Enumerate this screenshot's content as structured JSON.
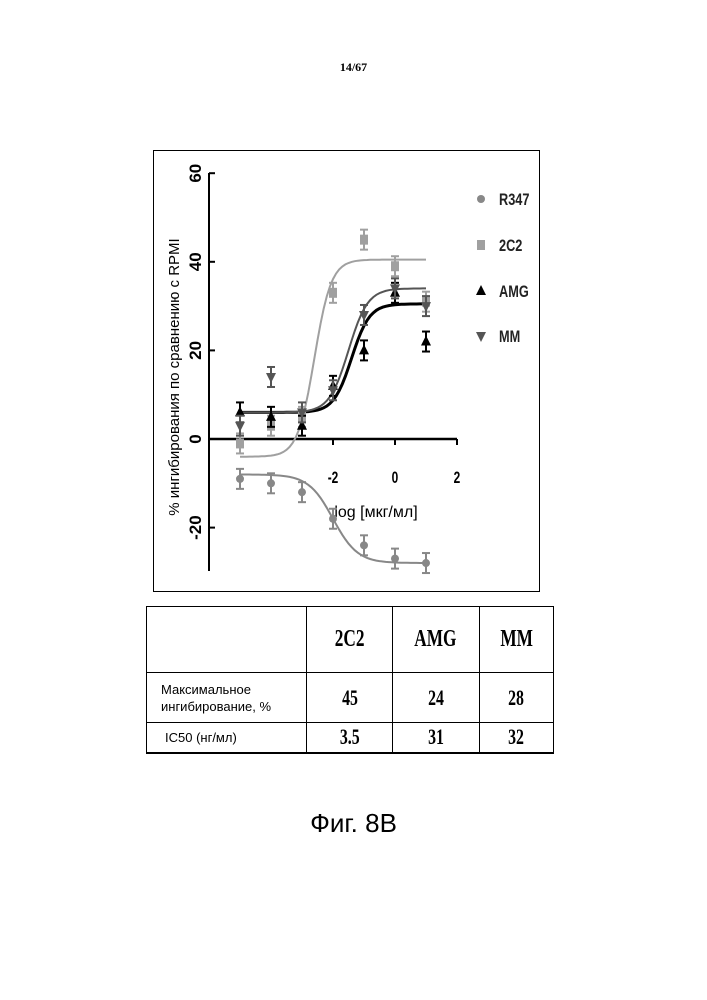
{
  "header": {
    "page_number": "14/67"
  },
  "chart_data": {
    "type": "scatter",
    "xlabel": "log [мкг/мл]",
    "ylabel": "% ингибирования по сравнению с RPMI",
    "xlim": [
      -5.5,
      2
    ],
    "ylim": [
      -30,
      60
    ],
    "xticks": [
      "-2",
      "0",
      "2"
    ],
    "yticks": [
      "60",
      "40",
      "20",
      "0",
      "-20"
    ],
    "legend_position": "right",
    "series": [
      {
        "name": "R347",
        "marker": "circle",
        "color": "#888888",
        "x": [
          -5,
          -4,
          -3,
          -2,
          -1,
          0,
          1
        ],
        "y": [
          -9,
          -10,
          -12,
          -18,
          -24,
          -27,
          -28
        ]
      },
      {
        "name": "2C2",
        "marker": "square",
        "color": "#a0a0a0",
        "x": [
          -5,
          -4,
          -3,
          -2,
          -1,
          0,
          1
        ],
        "y": [
          -1,
          3,
          5,
          33,
          45,
          39,
          31
        ]
      },
      {
        "name": "AMG",
        "marker": "triangle-up",
        "color": "#000000",
        "x": [
          -5,
          -4,
          -3,
          -2,
          -1,
          0,
          1
        ],
        "y": [
          6,
          5,
          3,
          12,
          20,
          33,
          22
        ]
      },
      {
        "name": "MM",
        "marker": "triangle-down",
        "color": "#555555",
        "x": [
          -5,
          -4,
          -3,
          -2,
          -1,
          0,
          1
        ],
        "y": [
          3,
          14,
          6,
          11,
          28,
          34,
          30
        ]
      }
    ]
  },
  "table": {
    "columns": [
      "2C2",
      "AMG",
      "MM"
    ],
    "rows": [
      {
        "label_line1": "Максимальное",
        "label_line2": "ингибирование, %",
        "values": [
          "45",
          "24",
          "28"
        ]
      },
      {
        "label_line1": "IC50 (нг/мл)",
        "values": [
          "3.5",
          "31",
          "32"
        ]
      }
    ]
  },
  "caption": "Фиг. 8B"
}
